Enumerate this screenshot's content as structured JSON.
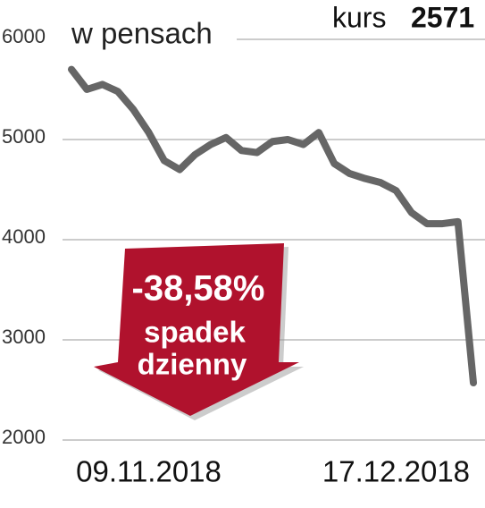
{
  "chart_data": {
    "type": "line",
    "subtitle": "w pensach",
    "price_label": "kurs",
    "price_value": 2571,
    "categories": [
      null,
      null,
      null,
      null,
      null,
      "09.11.2018",
      null,
      null,
      null,
      null,
      null,
      null,
      null,
      null,
      null,
      null,
      null,
      null,
      null,
      null,
      null,
      "17.12.2018",
      null,
      null,
      null,
      null,
      null
    ],
    "values": [
      5700,
      5500,
      5550,
      5480,
      5300,
      5070,
      4790,
      4700,
      4850,
      4950,
      5020,
      4890,
      4870,
      4980,
      5000,
      4950,
      5070,
      4760,
      4660,
      4610,
      4570,
      4490,
      4270,
      4160,
      4160,
      4180,
      2571
    ],
    "color": "#666666",
    "ylim": [
      2000,
      6000
    ],
    "yticks": [
      2000,
      3000,
      4000,
      5000,
      6000
    ],
    "grid": true,
    "annotation": {
      "lines": [
        "-38,58%",
        "spadek",
        "dzienny"
      ],
      "color": "#b0122d"
    }
  }
}
